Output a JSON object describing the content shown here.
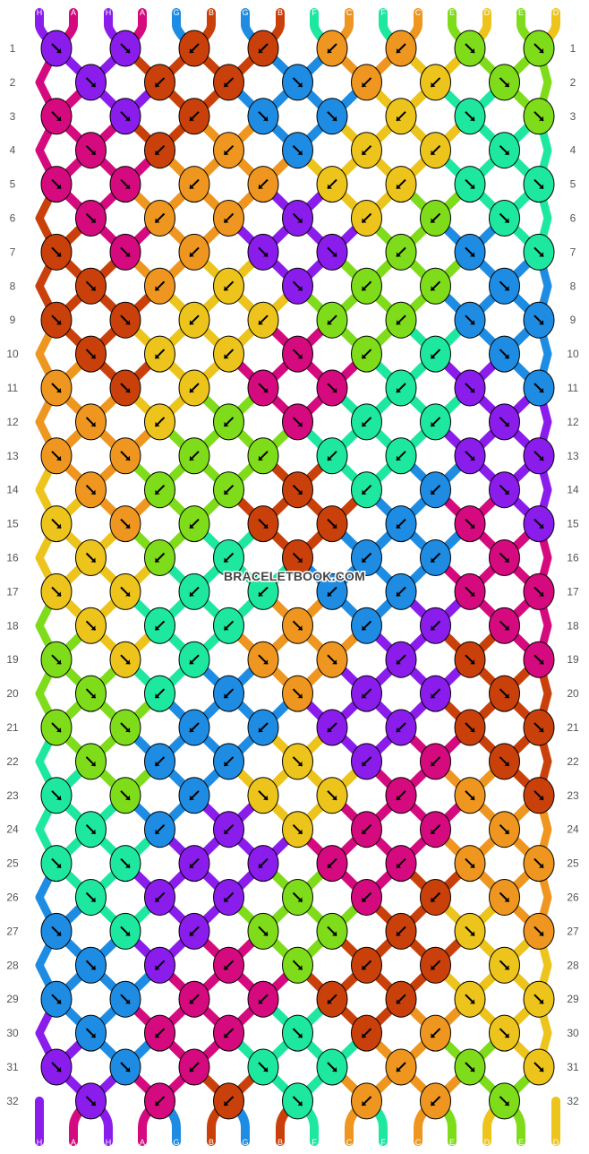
{
  "watermark": "BRACELETBOOK.COM",
  "strands_top": [
    "H",
    "A",
    "H",
    "A",
    "G",
    "B",
    "G",
    "B",
    "F",
    "C",
    "F",
    "C",
    "E",
    "D",
    "E",
    "D"
  ],
  "strands_bottom": [
    "H",
    "A",
    "H",
    "A",
    "G",
    "B",
    "G",
    "B",
    "F",
    "C",
    "F",
    "C",
    "E",
    "D",
    "E",
    "D"
  ],
  "colors": {
    "A": "#D40A7E",
    "B": "#C9400A",
    "C": "#EE9620",
    "D": "#EDC41C",
    "E": "#7EDC1A",
    "F": "#1EE8A0",
    "G": "#1E8CE2",
    "H": "#8A1CEC"
  },
  "rows": [
    {
      "label": "1",
      "knots": [
        {
          "c": "H",
          "d": "se"
        },
        {
          "c": "H",
          "d": "se"
        },
        {
          "c": "B",
          "d": "sw"
        },
        {
          "c": "B",
          "d": "sw"
        },
        {
          "c": "C",
          "d": "sw"
        },
        {
          "c": "C",
          "d": "sw"
        },
        {
          "c": "E",
          "d": "se"
        },
        {
          "c": "E",
          "d": "se"
        }
      ]
    },
    {
      "label": "2",
      "knots": [
        {
          "c": "H",
          "d": "se"
        },
        {
          "c": "B",
          "d": "sw"
        },
        {
          "c": "B",
          "d": "sw"
        },
        {
          "c": "G",
          "d": "se"
        },
        {
          "c": "C",
          "d": "sw"
        },
        {
          "c": "D",
          "d": "sw"
        },
        {
          "c": "E",
          "d": "se"
        }
      ]
    },
    {
      "label": "3",
      "knots": [
        {
          "c": "A",
          "d": "se"
        },
        {
          "c": "H",
          "d": "se"
        },
        {
          "c": "B",
          "d": "sw"
        },
        {
          "c": "G",
          "d": "se"
        },
        {
          "c": "G",
          "d": "se"
        },
        {
          "c": "D",
          "d": "sw"
        },
        {
          "c": "F",
          "d": "se"
        },
        {
          "c": "E",
          "d": "se"
        }
      ]
    },
    {
      "label": "4",
      "knots": [
        {
          "c": "A",
          "d": "se"
        },
        {
          "c": "B",
          "d": "sw"
        },
        {
          "c": "C",
          "d": "sw"
        },
        {
          "c": "G",
          "d": "se"
        },
        {
          "c": "D",
          "d": "sw"
        },
        {
          "c": "D",
          "d": "sw"
        },
        {
          "c": "F",
          "d": "se"
        }
      ]
    },
    {
      "label": "5",
      "knots": [
        {
          "c": "A",
          "d": "se"
        },
        {
          "c": "A",
          "d": "se"
        },
        {
          "c": "C",
          "d": "sw"
        },
        {
          "c": "C",
          "d": "sw"
        },
        {
          "c": "D",
          "d": "sw"
        },
        {
          "c": "D",
          "d": "sw"
        },
        {
          "c": "F",
          "d": "se"
        },
        {
          "c": "F",
          "d": "se"
        }
      ]
    },
    {
      "label": "6",
      "knots": [
        {
          "c": "A",
          "d": "se"
        },
        {
          "c": "C",
          "d": "sw"
        },
        {
          "c": "C",
          "d": "sw"
        },
        {
          "c": "H",
          "d": "se"
        },
        {
          "c": "D",
          "d": "sw"
        },
        {
          "c": "E",
          "d": "sw"
        },
        {
          "c": "F",
          "d": "se"
        }
      ]
    },
    {
      "label": "7",
      "knots": [
        {
          "c": "B",
          "d": "se"
        },
        {
          "c": "A",
          "d": "se"
        },
        {
          "c": "C",
          "d": "sw"
        },
        {
          "c": "H",
          "d": "se"
        },
        {
          "c": "H",
          "d": "se"
        },
        {
          "c": "E",
          "d": "sw"
        },
        {
          "c": "G",
          "d": "se"
        },
        {
          "c": "F",
          "d": "se"
        }
      ]
    },
    {
      "label": "8",
      "knots": [
        {
          "c": "B",
          "d": "se"
        },
        {
          "c": "C",
          "d": "sw"
        },
        {
          "c": "D",
          "d": "sw"
        },
        {
          "c": "H",
          "d": "se"
        },
        {
          "c": "E",
          "d": "sw"
        },
        {
          "c": "E",
          "d": "sw"
        },
        {
          "c": "G",
          "d": "se"
        }
      ]
    },
    {
      "label": "9",
      "knots": [
        {
          "c": "B",
          "d": "se"
        },
        {
          "c": "B",
          "d": "se"
        },
        {
          "c": "D",
          "d": "sw"
        },
        {
          "c": "D",
          "d": "sw"
        },
        {
          "c": "E",
          "d": "sw"
        },
        {
          "c": "E",
          "d": "sw"
        },
        {
          "c": "G",
          "d": "se"
        },
        {
          "c": "G",
          "d": "se"
        }
      ]
    },
    {
      "label": "10",
      "knots": [
        {
          "c": "B",
          "d": "se"
        },
        {
          "c": "D",
          "d": "sw"
        },
        {
          "c": "D",
          "d": "sw"
        },
        {
          "c": "A",
          "d": "se"
        },
        {
          "c": "E",
          "d": "sw"
        },
        {
          "c": "F",
          "d": "sw"
        },
        {
          "c": "G",
          "d": "se"
        }
      ]
    },
    {
      "label": "11",
      "knots": [
        {
          "c": "C",
          "d": "se"
        },
        {
          "c": "B",
          "d": "se"
        },
        {
          "c": "D",
          "d": "sw"
        },
        {
          "c": "A",
          "d": "se"
        },
        {
          "c": "A",
          "d": "se"
        },
        {
          "c": "F",
          "d": "sw"
        },
        {
          "c": "H",
          "d": "se"
        },
        {
          "c": "G",
          "d": "se"
        }
      ]
    },
    {
      "label": "12",
      "knots": [
        {
          "c": "C",
          "d": "se"
        },
        {
          "c": "D",
          "d": "sw"
        },
        {
          "c": "E",
          "d": "sw"
        },
        {
          "c": "A",
          "d": "se"
        },
        {
          "c": "F",
          "d": "sw"
        },
        {
          "c": "F",
          "d": "sw"
        },
        {
          "c": "H",
          "d": "se"
        }
      ]
    },
    {
      "label": "13",
      "knots": [
        {
          "c": "C",
          "d": "se"
        },
        {
          "c": "C",
          "d": "se"
        },
        {
          "c": "E",
          "d": "sw"
        },
        {
          "c": "E",
          "d": "sw"
        },
        {
          "c": "F",
          "d": "sw"
        },
        {
          "c": "F",
          "d": "sw"
        },
        {
          "c": "H",
          "d": "se"
        },
        {
          "c": "H",
          "d": "se"
        }
      ]
    },
    {
      "label": "14",
      "knots": [
        {
          "c": "C",
          "d": "se"
        },
        {
          "c": "E",
          "d": "sw"
        },
        {
          "c": "E",
          "d": "sw"
        },
        {
          "c": "B",
          "d": "se"
        },
        {
          "c": "F",
          "d": "sw"
        },
        {
          "c": "G",
          "d": "sw"
        },
        {
          "c": "H",
          "d": "se"
        }
      ]
    },
    {
      "label": "15",
      "knots": [
        {
          "c": "D",
          "d": "se"
        },
        {
          "c": "C",
          "d": "se"
        },
        {
          "c": "E",
          "d": "sw"
        },
        {
          "c": "B",
          "d": "se"
        },
        {
          "c": "B",
          "d": "se"
        },
        {
          "c": "G",
          "d": "sw"
        },
        {
          "c": "A",
          "d": "se"
        },
        {
          "c": "H",
          "d": "se"
        }
      ]
    },
    {
      "label": "16",
      "knots": [
        {
          "c": "D",
          "d": "se"
        },
        {
          "c": "E",
          "d": "sw"
        },
        {
          "c": "F",
          "d": "sw"
        },
        {
          "c": "B",
          "d": "se"
        },
        {
          "c": "G",
          "d": "sw"
        },
        {
          "c": "G",
          "d": "sw"
        },
        {
          "c": "A",
          "d": "se"
        }
      ]
    },
    {
      "label": "17",
      "knots": [
        {
          "c": "D",
          "d": "se"
        },
        {
          "c": "D",
          "d": "se"
        },
        {
          "c": "F",
          "d": "sw"
        },
        {
          "c": "F",
          "d": "sw"
        },
        {
          "c": "G",
          "d": "sw"
        },
        {
          "c": "G",
          "d": "sw"
        },
        {
          "c": "A",
          "d": "se"
        },
        {
          "c": "A",
          "d": "se"
        }
      ]
    },
    {
      "label": "18",
      "knots": [
        {
          "c": "D",
          "d": "se"
        },
        {
          "c": "F",
          "d": "sw"
        },
        {
          "c": "F",
          "d": "sw"
        },
        {
          "c": "C",
          "d": "se"
        },
        {
          "c": "G",
          "d": "sw"
        },
        {
          "c": "H",
          "d": "sw"
        },
        {
          "c": "A",
          "d": "se"
        }
      ]
    },
    {
      "label": "19",
      "knots": [
        {
          "c": "E",
          "d": "se"
        },
        {
          "c": "D",
          "d": "se"
        },
        {
          "c": "F",
          "d": "sw"
        },
        {
          "c": "C",
          "d": "se"
        },
        {
          "c": "C",
          "d": "se"
        },
        {
          "c": "H",
          "d": "sw"
        },
        {
          "c": "B",
          "d": "se"
        },
        {
          "c": "A",
          "d": "se"
        }
      ]
    },
    {
      "label": "20",
      "knots": [
        {
          "c": "E",
          "d": "se"
        },
        {
          "c": "F",
          "d": "sw"
        },
        {
          "c": "G",
          "d": "sw"
        },
        {
          "c": "C",
          "d": "se"
        },
        {
          "c": "H",
          "d": "sw"
        },
        {
          "c": "H",
          "d": "sw"
        },
        {
          "c": "B",
          "d": "se"
        }
      ]
    },
    {
      "label": "21",
      "knots": [
        {
          "c": "E",
          "d": "se"
        },
        {
          "c": "E",
          "d": "se"
        },
        {
          "c": "G",
          "d": "sw"
        },
        {
          "c": "G",
          "d": "sw"
        },
        {
          "c": "H",
          "d": "sw"
        },
        {
          "c": "H",
          "d": "sw"
        },
        {
          "c": "B",
          "d": "se"
        },
        {
          "c": "B",
          "d": "se"
        }
      ]
    },
    {
      "label": "22",
      "knots": [
        {
          "c": "E",
          "d": "se"
        },
        {
          "c": "G",
          "d": "sw"
        },
        {
          "c": "G",
          "d": "sw"
        },
        {
          "c": "D",
          "d": "se"
        },
        {
          "c": "H",
          "d": "sw"
        },
        {
          "c": "A",
          "d": "sw"
        },
        {
          "c": "B",
          "d": "se"
        }
      ]
    },
    {
      "label": "23",
      "knots": [
        {
          "c": "F",
          "d": "se"
        },
        {
          "c": "E",
          "d": "se"
        },
        {
          "c": "G",
          "d": "sw"
        },
        {
          "c": "D",
          "d": "se"
        },
        {
          "c": "D",
          "d": "se"
        },
        {
          "c": "A",
          "d": "sw"
        },
        {
          "c": "C",
          "d": "se"
        },
        {
          "c": "B",
          "d": "se"
        }
      ]
    },
    {
      "label": "24",
      "knots": [
        {
          "c": "F",
          "d": "se"
        },
        {
          "c": "G",
          "d": "sw"
        },
        {
          "c": "H",
          "d": "sw"
        },
        {
          "c": "D",
          "d": "se"
        },
        {
          "c": "A",
          "d": "sw"
        },
        {
          "c": "A",
          "d": "sw"
        },
        {
          "c": "C",
          "d": "se"
        }
      ]
    },
    {
      "label": "25",
      "knots": [
        {
          "c": "F",
          "d": "se"
        },
        {
          "c": "F",
          "d": "se"
        },
        {
          "c": "H",
          "d": "sw"
        },
        {
          "c": "H",
          "d": "sw"
        },
        {
          "c": "A",
          "d": "sw"
        },
        {
          "c": "A",
          "d": "sw"
        },
        {
          "c": "C",
          "d": "se"
        },
        {
          "c": "C",
          "d": "se"
        }
      ]
    },
    {
      "label": "26",
      "knots": [
        {
          "c": "F",
          "d": "se"
        },
        {
          "c": "H",
          "d": "sw"
        },
        {
          "c": "H",
          "d": "sw"
        },
        {
          "c": "E",
          "d": "se"
        },
        {
          "c": "A",
          "d": "sw"
        },
        {
          "c": "B",
          "d": "sw"
        },
        {
          "c": "C",
          "d": "se"
        }
      ]
    },
    {
      "label": "27",
      "knots": [
        {
          "c": "G",
          "d": "se"
        },
        {
          "c": "F",
          "d": "se"
        },
        {
          "c": "H",
          "d": "sw"
        },
        {
          "c": "E",
          "d": "se"
        },
        {
          "c": "E",
          "d": "se"
        },
        {
          "c": "B",
          "d": "sw"
        },
        {
          "c": "D",
          "d": "se"
        },
        {
          "c": "C",
          "d": "se"
        }
      ]
    },
    {
      "label": "28",
      "knots": [
        {
          "c": "G",
          "d": "se"
        },
        {
          "c": "H",
          "d": "sw"
        },
        {
          "c": "A",
          "d": "sw"
        },
        {
          "c": "E",
          "d": "se"
        },
        {
          "c": "B",
          "d": "sw"
        },
        {
          "c": "B",
          "d": "sw"
        },
        {
          "c": "D",
          "d": "se"
        }
      ]
    },
    {
      "label": "29",
      "knots": [
        {
          "c": "G",
          "d": "se"
        },
        {
          "c": "G",
          "d": "se"
        },
        {
          "c": "A",
          "d": "sw"
        },
        {
          "c": "A",
          "d": "sw"
        },
        {
          "c": "B",
          "d": "sw"
        },
        {
          "c": "B",
          "d": "sw"
        },
        {
          "c": "D",
          "d": "se"
        },
        {
          "c": "D",
          "d": "se"
        }
      ]
    },
    {
      "label": "30",
      "knots": [
        {
          "c": "G",
          "d": "se"
        },
        {
          "c": "A",
          "d": "sw"
        },
        {
          "c": "A",
          "d": "sw"
        },
        {
          "c": "F",
          "d": "se"
        },
        {
          "c": "B",
          "d": "sw"
        },
        {
          "c": "C",
          "d": "sw"
        },
        {
          "c": "D",
          "d": "se"
        }
      ]
    },
    {
      "label": "31",
      "knots": [
        {
          "c": "H",
          "d": "se"
        },
        {
          "c": "G",
          "d": "se"
        },
        {
          "c": "A",
          "d": "sw"
        },
        {
          "c": "F",
          "d": "se"
        },
        {
          "c": "F",
          "d": "se"
        },
        {
          "c": "C",
          "d": "sw"
        },
        {
          "c": "E",
          "d": "se"
        },
        {
          "c": "D",
          "d": "se"
        }
      ]
    },
    {
      "label": "32",
      "knots": [
        {
          "c": "H",
          "d": "se"
        },
        {
          "c": "A",
          "d": "sw"
        },
        {
          "c": "B",
          "d": "sw"
        },
        {
          "c": "F",
          "d": "se"
        },
        {
          "c": "C",
          "d": "sw"
        },
        {
          "c": "C",
          "d": "sw"
        },
        {
          "c": "E",
          "d": "se"
        }
      ]
    }
  ]
}
